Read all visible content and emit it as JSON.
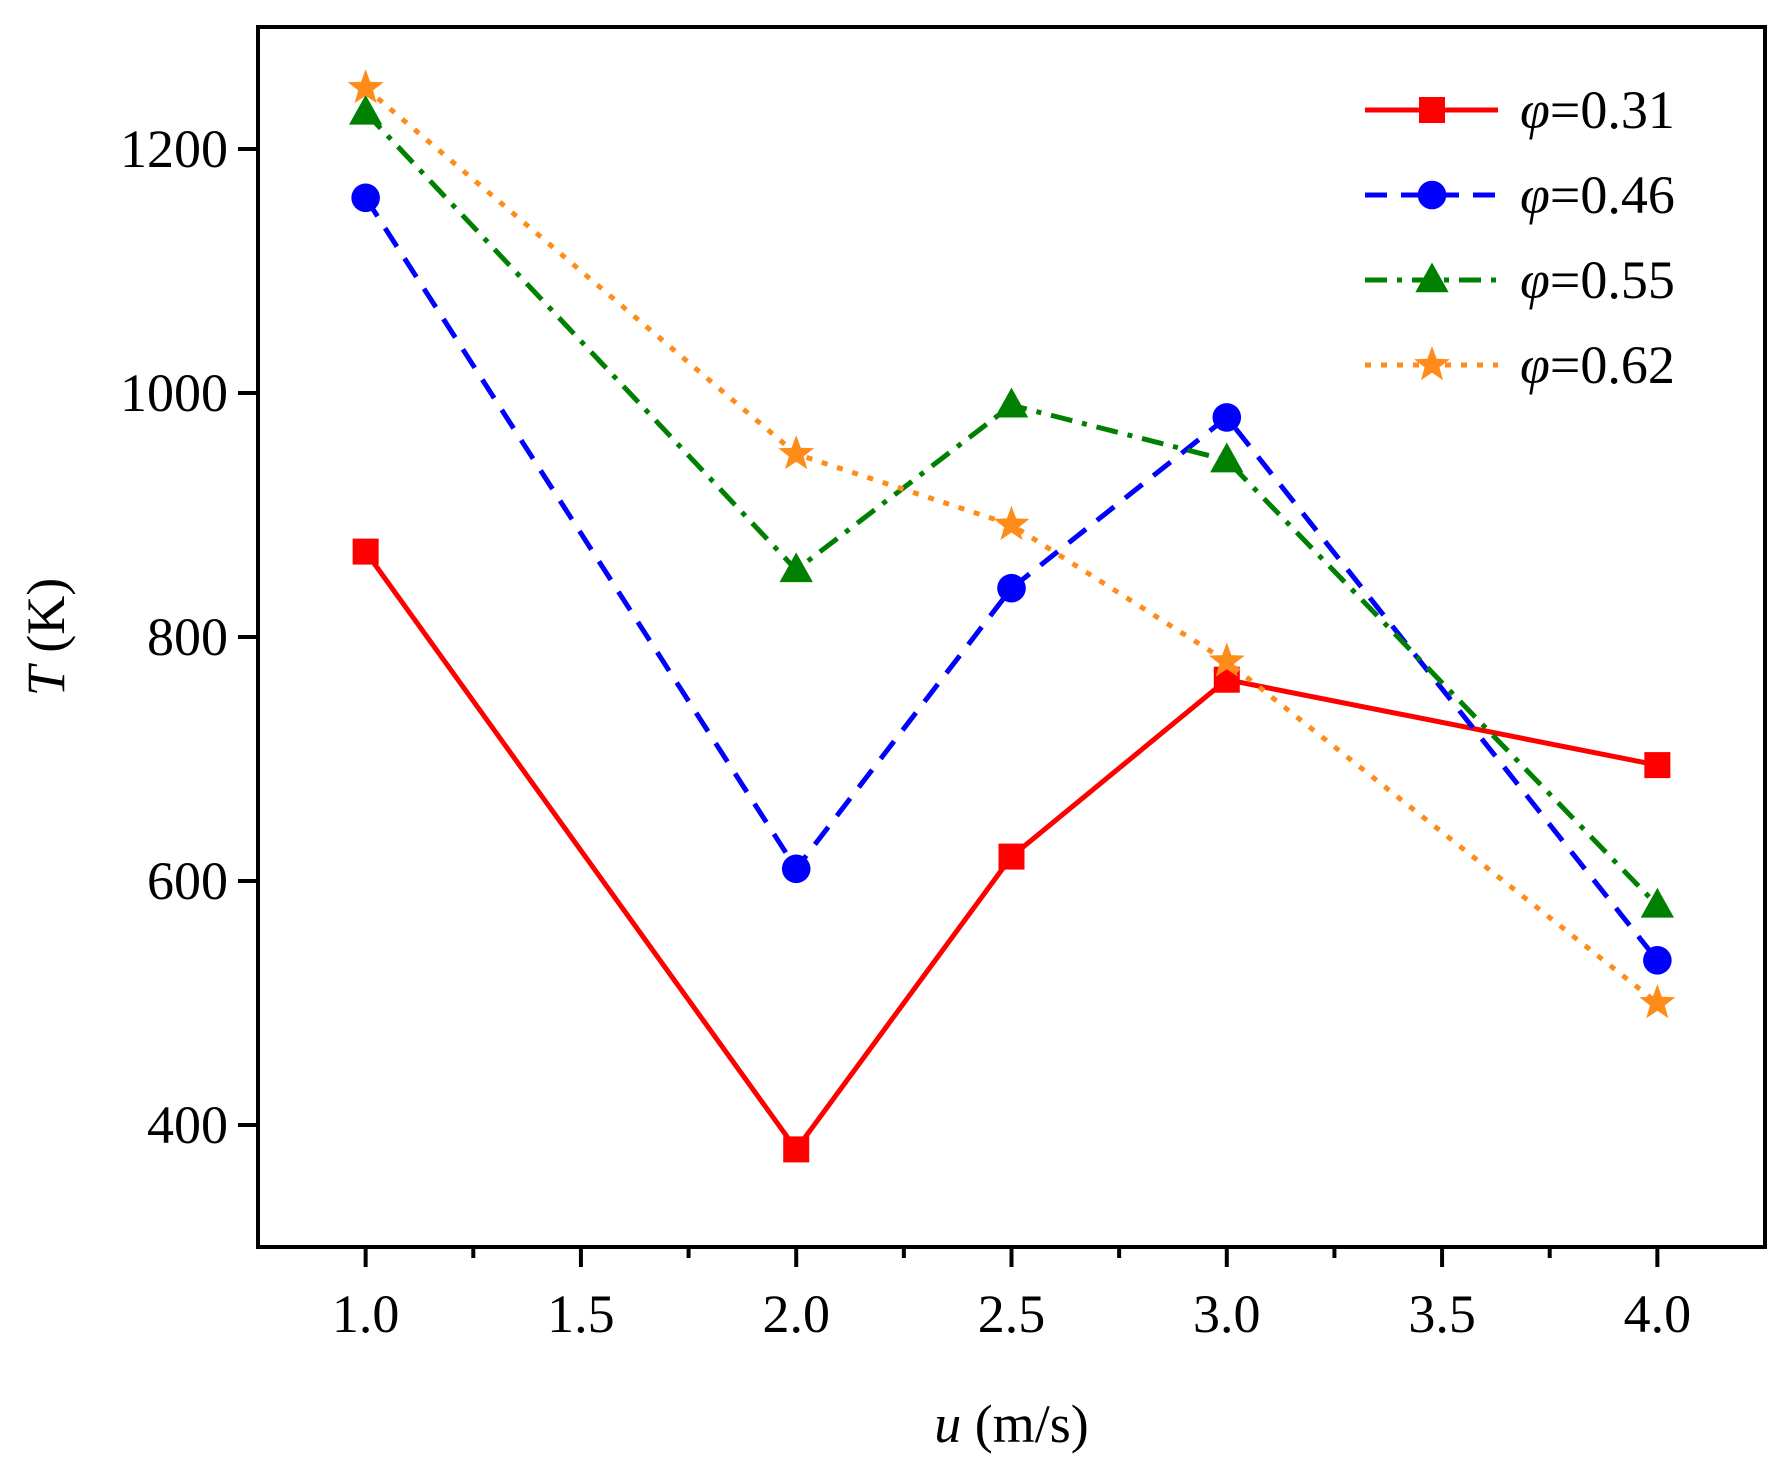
{
  "chart_data": {
    "type": "line",
    "xlabel_var": "u",
    "xlabel_unit": " (m/s)",
    "ylabel_var": "T",
    "ylabel_unit": " (K)",
    "x_ticks": [
      1.0,
      1.5,
      2.0,
      2.5,
      3.0,
      3.5,
      4.0
    ],
    "x_tick_labels": [
      "1.0",
      "1.5",
      "2.0",
      "2.5",
      "3.0",
      "3.5",
      "4.0"
    ],
    "y_ticks": [
      400,
      600,
      800,
      1000,
      1200
    ],
    "y_tick_labels": [
      "400",
      "600",
      "800",
      "1000",
      "1200"
    ],
    "x_display_positions": [
      1.0,
      2.0,
      2.5,
      3.0,
      4.0
    ],
    "xlim": [
      0.75,
      4.25
    ],
    "ylim": [
      300,
      1300
    ],
    "legend_position": "top-right",
    "series": [
      {
        "name_var": "φ",
        "name_value": "=0.31",
        "color": "#ff0000",
        "dash": "solid",
        "marker": "square",
        "values": [
          870,
          380,
          620,
          765,
          695
        ]
      },
      {
        "name_var": "φ",
        "name_value": "=0.46",
        "color": "#0000ff",
        "dash": "dash",
        "marker": "circle",
        "values": [
          1160,
          610,
          840,
          980,
          535
        ]
      },
      {
        "name_var": "φ",
        "name_value": "=0.55",
        "color": "#008000",
        "dash": "dashdot",
        "marker": "triangle",
        "values": [
          1230,
          855,
          990,
          945,
          580
        ]
      },
      {
        "name_var": "φ",
        "name_value": "=0.62",
        "color": "#ff8c1a",
        "dash": "dot",
        "marker": "star",
        "values": [
          1250,
          950,
          892,
          780,
          500
        ]
      }
    ]
  }
}
